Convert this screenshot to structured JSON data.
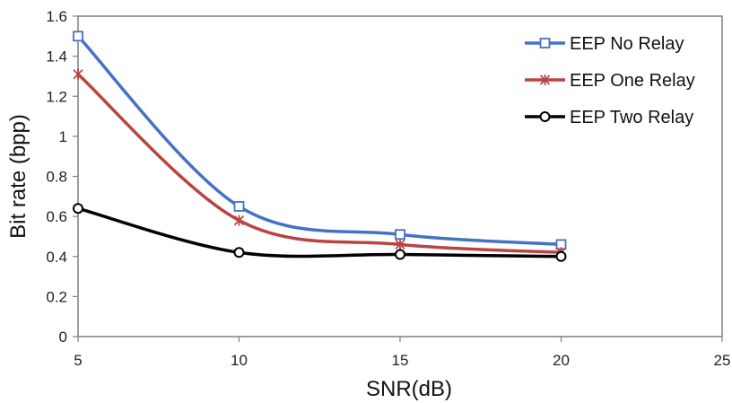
{
  "chart_data": {
    "type": "line",
    "title": "",
    "xlabel": "SNR(dB)",
    "ylabel": "Bit rate (bpp)",
    "xlim": [
      5,
      25
    ],
    "ylim": [
      0,
      1.6
    ],
    "xticks": [
      5,
      10,
      15,
      20,
      25
    ],
    "yticks": [
      0,
      0.2,
      0.4,
      0.6,
      0.8,
      1,
      1.2,
      1.4,
      1.6
    ],
    "ytick_labels": [
      "0",
      "0.2",
      "0.4",
      "0.6",
      "0.8",
      "1",
      "1.2",
      "1.4",
      "1.6"
    ],
    "grid": false,
    "legend_position": "top-right",
    "series": [
      {
        "name": "EEP No Relay",
        "marker": "square",
        "color": "#4472C4",
        "marker_color": "#4472C4",
        "x": [
          5,
          10,
          15,
          20
        ],
        "y": [
          1.5,
          0.65,
          0.51,
          0.46
        ]
      },
      {
        "name": "EEP One Relay",
        "marker": "star",
        "color": "#B94442",
        "marker_color": "#B94442",
        "x": [
          5,
          10,
          15,
          20
        ],
        "y": [
          1.31,
          0.58,
          0.46,
          0.42
        ]
      },
      {
        "name": "EEP Two Relay",
        "marker": "circle",
        "color": "#000000",
        "marker_color": "#000000",
        "x": [
          5,
          10,
          15,
          20
        ],
        "y": [
          0.64,
          0.42,
          0.41,
          0.4
        ]
      }
    ]
  }
}
